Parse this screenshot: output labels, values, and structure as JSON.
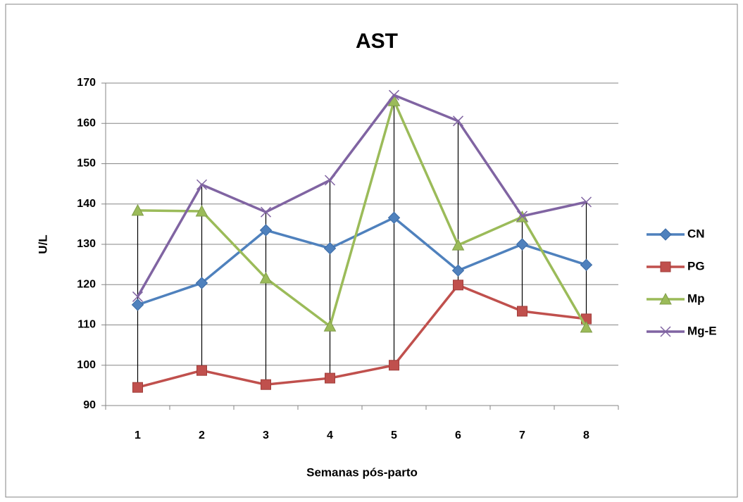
{
  "chart_data": {
    "type": "line",
    "title": "AST",
    "x_label": "Semanas pós-parto",
    "y_label": "U/L",
    "categories": [
      "1",
      "2",
      "3",
      "4",
      "5",
      "6",
      "7",
      "8"
    ],
    "series": [
      {
        "name": "CN",
        "color": "#4f81bd",
        "marker": "diamond",
        "values": [
          115,
          120.4,
          133.5,
          129,
          136.6,
          123.5,
          130,
          124.9
        ]
      },
      {
        "name": "PG",
        "color": "#c0504d",
        "marker": "square",
        "values": [
          94.5,
          98.7,
          95.2,
          96.8,
          100,
          119.9,
          113.4,
          111.5
        ]
      },
      {
        "name": "Mp",
        "color": "#9bbb59",
        "marker": "triangle",
        "values": [
          138.4,
          138.2,
          121.6,
          109.7,
          165.6,
          129.8,
          136.8,
          109.4
        ]
      },
      {
        "name": "Mg-E",
        "color": "#8064a2",
        "marker": "x",
        "values": [
          117,
          144.8,
          138,
          145.9,
          167,
          160.6,
          137,
          140.5
        ]
      }
    ],
    "ylim": [
      90,
      170
    ],
    "yticks": [
      90,
      100,
      110,
      120,
      130,
      140,
      150,
      160,
      170
    ],
    "grid": true,
    "high_low_lines": true,
    "legend": "right"
  }
}
